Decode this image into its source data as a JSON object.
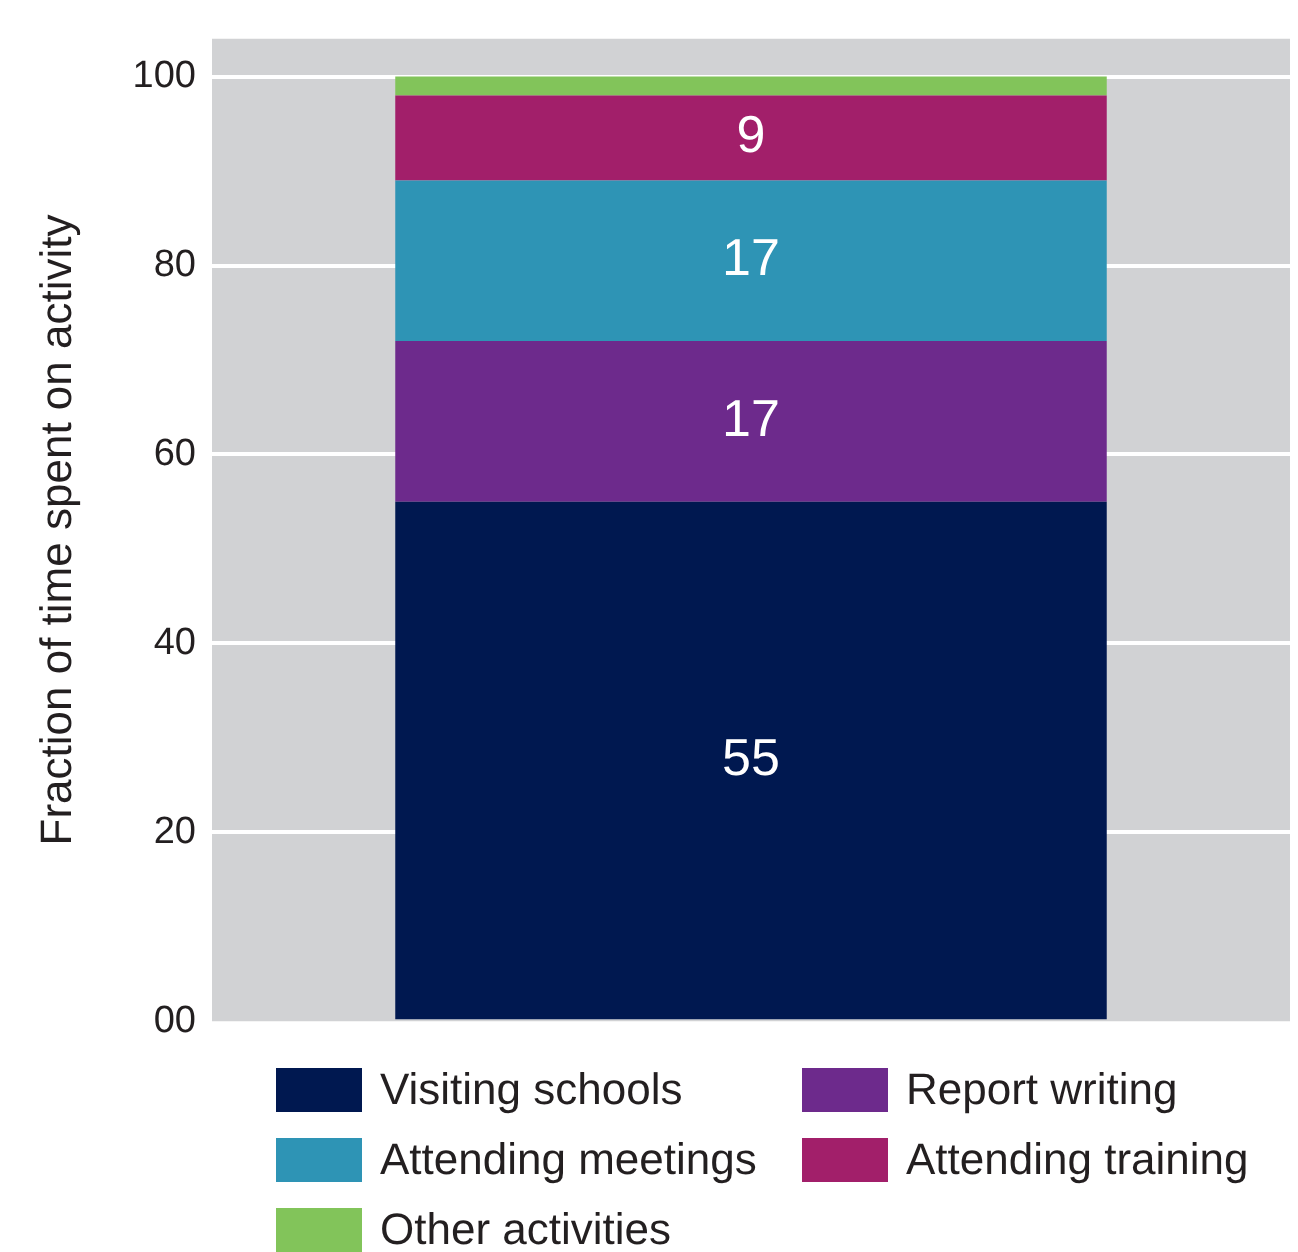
{
  "chart_data": {
    "type": "bar",
    "ylabel": "Fraction of time spent on activity",
    "categories": [
      null
    ],
    "stacked": true,
    "series": [
      {
        "name": "Visiting schools",
        "color": "#001850",
        "values": [
          55
        ],
        "value_labels": [
          "55"
        ]
      },
      {
        "name": "Report writing",
        "color": "#6d2a8c",
        "values": [
          17
        ],
        "value_labels": [
          "17"
        ]
      },
      {
        "name": "Attending meetings",
        "color": "#2e94b5",
        "values": [
          17
        ],
        "value_labels": [
          "17"
        ]
      },
      {
        "name": "Attending training",
        "color": "#a21f6a",
        "values": [
          9
        ],
        "value_labels": [
          "9"
        ]
      },
      {
        "name": "Other activities",
        "color": "#82c45a",
        "values": [
          2
        ]
      }
    ],
    "ylim": [
      0,
      104
    ],
    "yticks": [
      {
        "value": 0,
        "label": "00"
      },
      20,
      40,
      60,
      80,
      100
    ],
    "grid": "y",
    "legend": "bottom"
  }
}
